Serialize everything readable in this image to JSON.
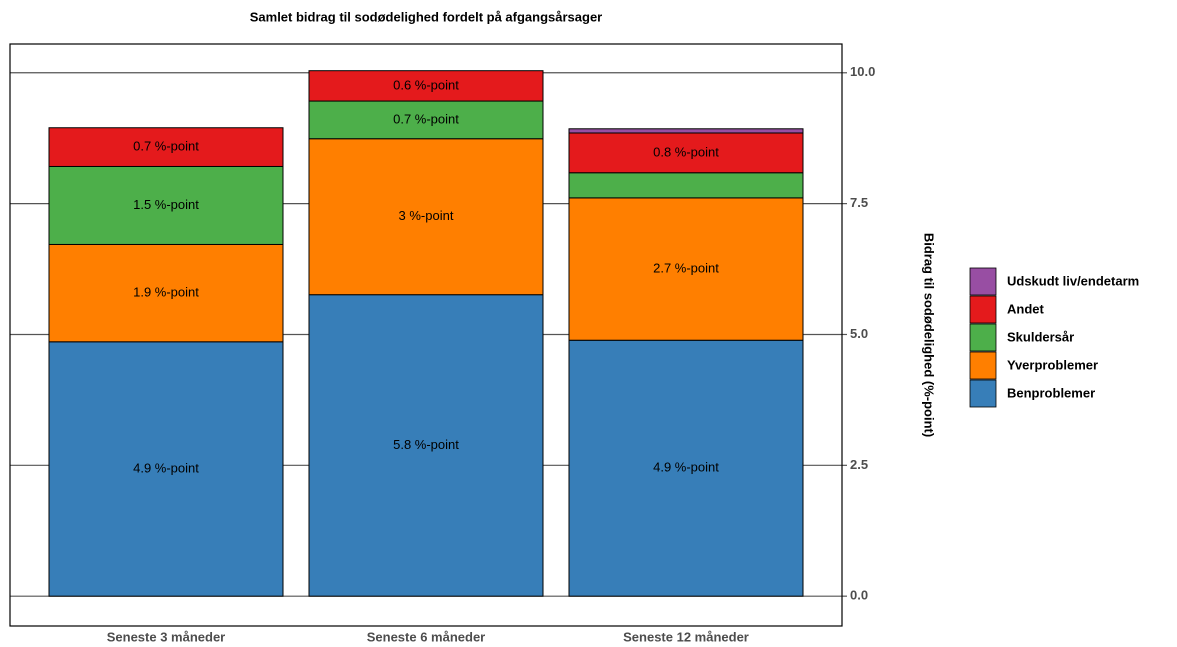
{
  "chart_data": {
    "type": "stacked_bar",
    "title": "Samlet bidrag til sodødelighed fordelt på afgangsårsager",
    "y_label": "Bidrag til sodødelighed (%-point)",
    "categories": [
      "Seneste 3 måneder",
      "Seneste 6 måneder",
      "Seneste 12 måneder"
    ],
    "series": [
      {
        "name": "Benproblemer",
        "color": "#377eb8",
        "values": [
          4.86,
          5.76,
          4.89
        ],
        "value_labels": [
          "4.9 %-point",
          "5.8 %-point",
          "4.9 %-point"
        ]
      },
      {
        "name": "Yverproblemer",
        "color": "#ff7f00",
        "values": [
          1.86,
          2.98,
          2.72
        ],
        "value_labels": [
          "1.9 %-point",
          "3 %-point",
          "2.7 %-point"
        ]
      },
      {
        "name": "Skuldersår",
        "color": "#4daf4a",
        "values": [
          1.49,
          0.72,
          0.48
        ],
        "value_labels": [
          "1.5 %-point",
          "0.7 %-point",
          null
        ]
      },
      {
        "name": "Andet",
        "color": "#e41a1c",
        "values": [
          0.74,
          0.58,
          0.76
        ],
        "value_labels": [
          "0.7 %-point",
          "0.6 %-point",
          "0.8 %-point"
        ]
      },
      {
        "name": "Udskudt liv/endetarm",
        "color": "#984ea3",
        "values": [
          0,
          0,
          0.08
        ],
        "value_labels": [
          null,
          null,
          null
        ]
      }
    ],
    "ylim": [
      -0.57,
      10.55
    ],
    "yticks": [
      {
        "value": 0,
        "label": "0.0"
      },
      2.5,
      {
        "value": 5,
        "label": "5.0"
      },
      7.5,
      {
        "value": 10,
        "label": "10.0"
      }
    ],
    "grid": true,
    "y_axis_side": "right",
    "legend": "right"
  }
}
